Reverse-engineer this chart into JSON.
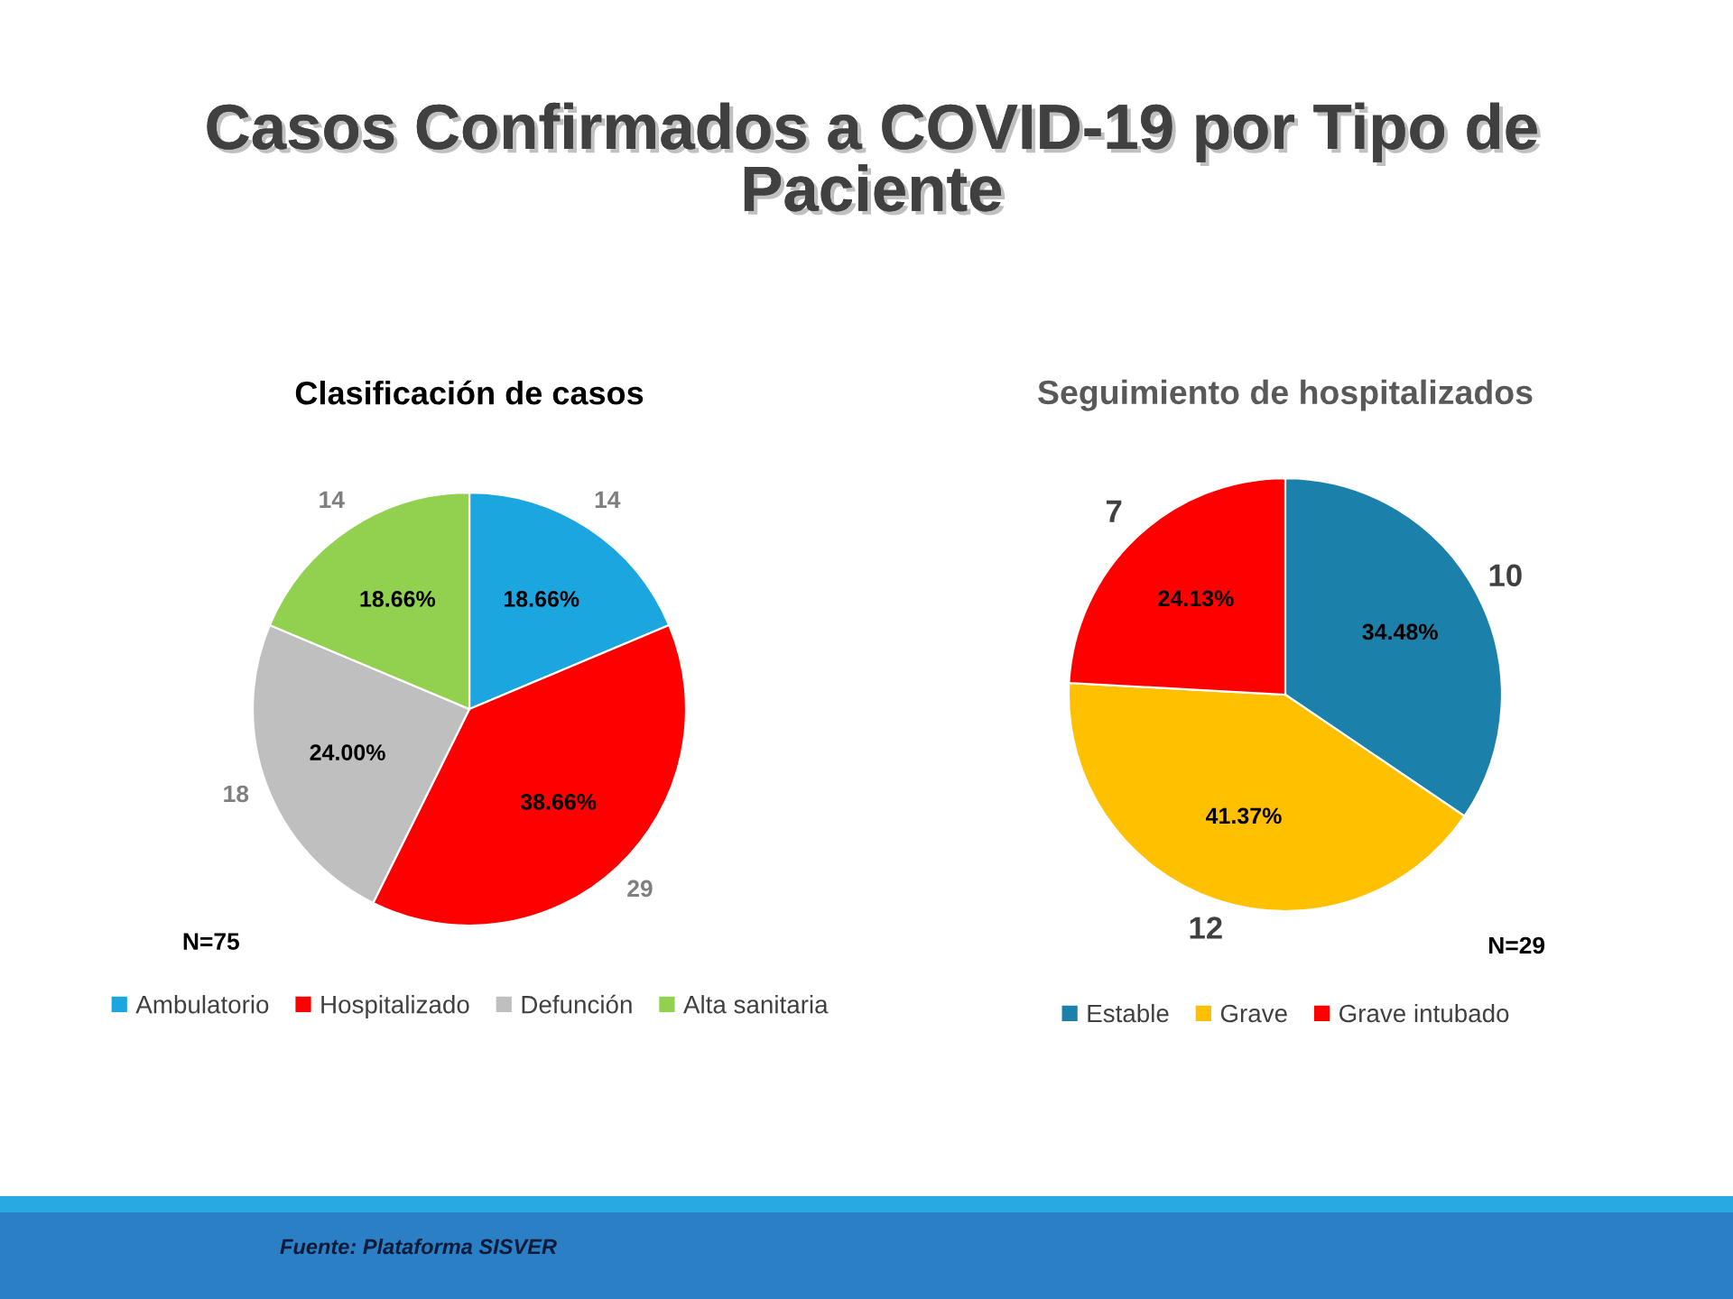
{
  "chart_data": [
    {
      "type": "other",
      "title": "Casos Confirmados a COVID-19 por Tipo de Paciente",
      "annotations": [
        "Fuente: Plataforma SISVER"
      ]
    },
    {
      "type": "pie",
      "title": "Clasificación de casos",
      "categories": [
        "Ambulatorio",
        "Hospitalizado",
        "Defunción",
        "Alta sanitaria"
      ],
      "values": [
        14,
        29,
        18,
        14
      ],
      "colors": [
        "#1ba6e0",
        "#ff0000",
        "#bfbfbf",
        "#92d050"
      ],
      "data_labels": true,
      "legend": "bottom",
      "annotations": [
        {
          "text": "18.66%",
          "x": "Ambulatorio"
        },
        {
          "text": "38.66%",
          "x": "Hospitalizado"
        },
        {
          "text": "24.00%",
          "x": "Defunción"
        },
        {
          "text": "18.66%",
          "x": "Alta sanitaria"
        },
        "N=75"
      ]
    },
    {
      "type": "pie",
      "title": "Seguimiento de hospitalizados",
      "categories": [
        "Estable",
        "Grave",
        "Grave intubado"
      ],
      "values": [
        10,
        12,
        7
      ],
      "colors": [
        "#1b80aa",
        "#ffc000",
        "#ff0000"
      ],
      "data_labels": true,
      "legend": "bottom",
      "annotations": [
        {
          "text": "34.48%",
          "x": "Estable"
        },
        {
          "text": "41.37%",
          "x": "Grave"
        },
        {
          "text": "24.13%",
          "x": "Grave intubado"
        },
        "N=29"
      ]
    }
  ]
}
